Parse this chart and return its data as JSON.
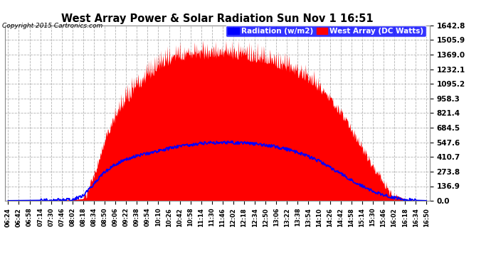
{
  "title": "West Array Power & Solar Radiation Sun Nov 1 16:51",
  "copyright": "Copyright 2015 Cartronics.com",
  "legend_labels": [
    "Radiation (w/m2)",
    "West Array (DC Watts)"
  ],
  "ymax": 1642.8,
  "ymin": 0.0,
  "yticks": [
    0.0,
    136.9,
    273.8,
    410.7,
    547.6,
    684.5,
    821.4,
    958.3,
    1095.2,
    1232.1,
    1369.0,
    1505.9,
    1642.8
  ],
  "red_color": "#ff0000",
  "blue_color": "#0000ff",
  "bg_color": "#ffffff",
  "plot_bg_color": "#ffffff",
  "grid_color": "#aaaaaa",
  "time_labels": [
    "06:24",
    "06:42",
    "06:58",
    "07:14",
    "07:30",
    "07:46",
    "08:02",
    "08:18",
    "08:34",
    "08:50",
    "09:06",
    "09:22",
    "09:38",
    "09:54",
    "10:10",
    "10:26",
    "10:42",
    "10:58",
    "11:14",
    "11:30",
    "11:46",
    "12:02",
    "12:18",
    "12:34",
    "12:50",
    "13:06",
    "13:22",
    "13:38",
    "13:54",
    "14:10",
    "14:26",
    "14:42",
    "14:58",
    "15:14",
    "15:30",
    "15:46",
    "16:02",
    "16:18",
    "16:34",
    "16:50"
  ],
  "red_base": [
    2,
    3,
    4,
    5,
    6,
    8,
    10,
    20,
    280,
    600,
    820,
    980,
    1100,
    1200,
    1290,
    1340,
    1370,
    1390,
    1400,
    1410,
    1410,
    1400,
    1390,
    1370,
    1350,
    1320,
    1280,
    1230,
    1170,
    1090,
    990,
    860,
    700,
    530,
    360,
    200,
    60,
    15,
    5,
    2
  ],
  "blue_base": [
    2,
    3,
    4,
    5,
    6,
    8,
    10,
    50,
    160,
    270,
    340,
    390,
    420,
    445,
    465,
    490,
    510,
    525,
    538,
    545,
    548,
    545,
    540,
    533,
    522,
    505,
    482,
    452,
    415,
    370,
    315,
    255,
    195,
    140,
    92,
    55,
    28,
    12,
    5,
    2
  ]
}
